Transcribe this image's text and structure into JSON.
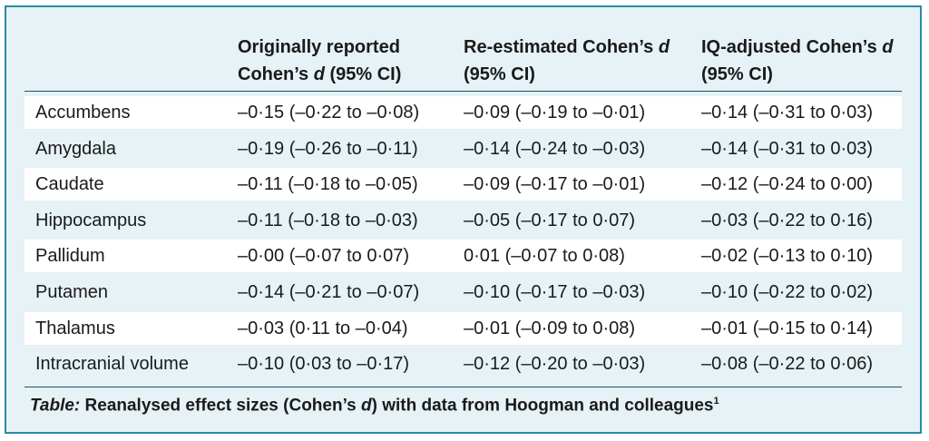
{
  "table": {
    "headers": [
      {
        "line1": "",
        "line2": ""
      },
      {
        "line1": "Originally reported",
        "line2_pre": "Cohen’s ",
        "line2_ital": "d",
        "line2_post": " (95% CI)"
      },
      {
        "line1_pre": "Re-estimated Cohen’s ",
        "line1_ital": "d",
        "line2": "(95% CI)"
      },
      {
        "line1_pre": "IQ-adjusted Cohen’s ",
        "line1_ital": "d",
        "line2": "(95% CI)"
      }
    ],
    "rows": [
      {
        "region": "Accumbens",
        "original": "–0·15 (–0·22 to –0·08)",
        "reestimated": "–0·09 (–0·19 to –0·01)",
        "iq_adjusted": "–0·14 (–0·31 to 0·03)"
      },
      {
        "region": "Amygdala",
        "original": "–0·19 (–0·26 to –0·11)",
        "reestimated": "–0·14 (–0·24 to –0·03)",
        "iq_adjusted": "–0·14 (–0·31 to 0·03)"
      },
      {
        "region": "Caudate",
        "original": "–0·11 (–0·18 to –0·05)",
        "reestimated": "–0·09 (–0·17 to –0·01)",
        "iq_adjusted": "–0·12 (–0·24 to 0·00)"
      },
      {
        "region": "Hippocampus",
        "original": "–0·11 (–0·18 to –0·03)",
        "reestimated": "–0·05 (–0·17 to 0·07)",
        "iq_adjusted": "–0·03 (–0·22 to 0·16)"
      },
      {
        "region": "Pallidum",
        "original": "–0·00 (–0·07 to 0·07)",
        "reestimated": "0·01 (–0·07 to 0·08)",
        "iq_adjusted": "–0·02 (–0·13 to 0·10)"
      },
      {
        "region": "Putamen",
        "original": "–0·14 (–0·21 to –0·07)",
        "reestimated": "–0·10 (–0·17 to –0·03)",
        "iq_adjusted": "–0·10 (–0·22 to 0·02)"
      },
      {
        "region": "Thalamus",
        "original": "–0·03 (0·11 to –0·04)",
        "reestimated": "–0·01 (–0·09 to 0·08)",
        "iq_adjusted": "–0·01 (–0·15 to 0·14)"
      },
      {
        "region": "Intracranial volume",
        "original": "–0·10 (0·03 to –0·17)",
        "reestimated": "–0·12 (–0·20 to –0·03)",
        "iq_adjusted": "–0·08 (–0·22 to 0·06)"
      }
    ]
  },
  "caption": {
    "lead": "Table:",
    "text_pre": " Reanalysed effect sizes (Cohen’s ",
    "text_ital": "d",
    "text_post": ") with data from Hoogman and colleagues",
    "superscript": "1"
  },
  "colors": {
    "background": "#e6f2f5",
    "border": "#2d8aa3",
    "rule": "#1f5366",
    "shaded_row": "#ffffff"
  }
}
